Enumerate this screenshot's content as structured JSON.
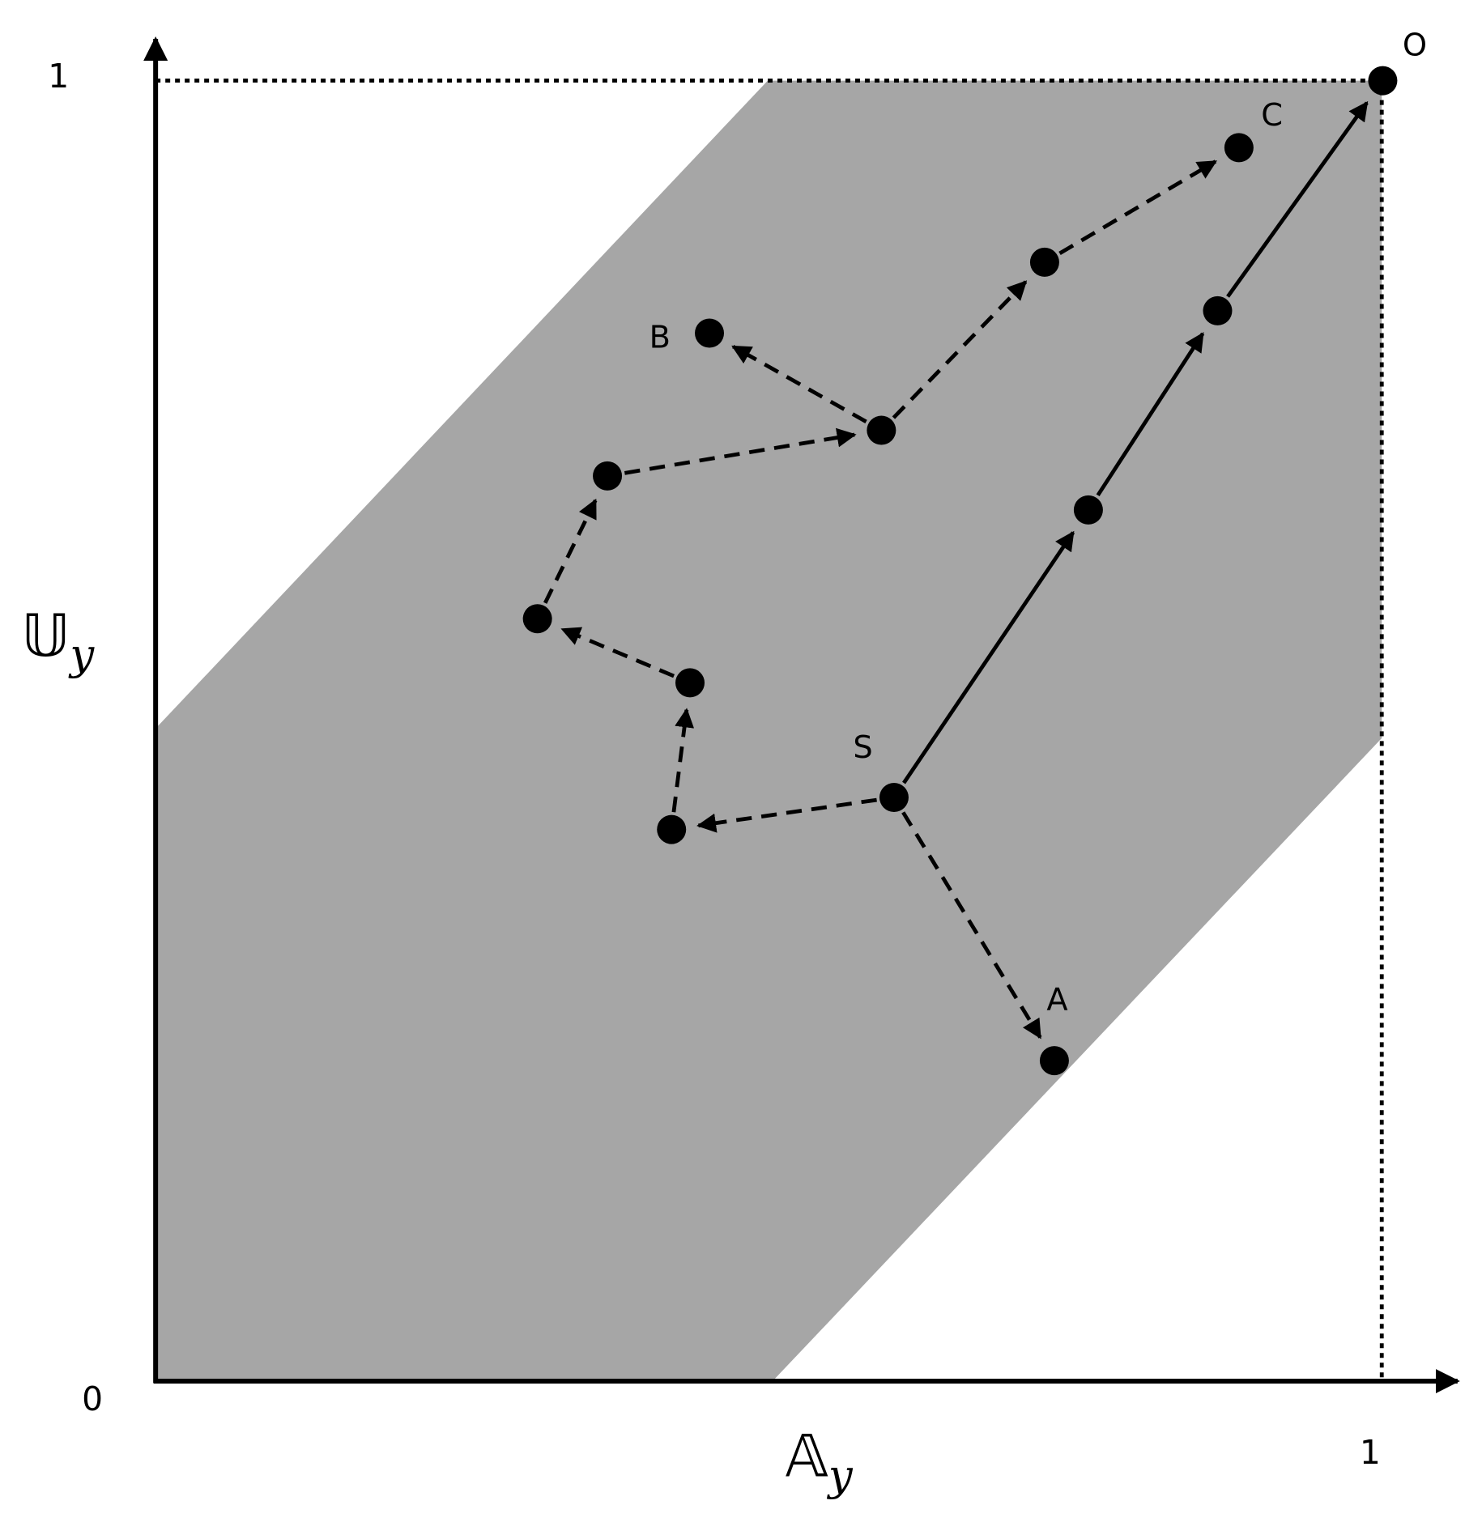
{
  "axes": {
    "x_label": {
      "symbol": "𝔸",
      "subscript": "y"
    },
    "y_label": {
      "symbol": "𝕌",
      "subscript": "y"
    },
    "origin_label": "0",
    "x_max_label": "1",
    "y_max_label": "1"
  },
  "points": {
    "O": "O",
    "C": "C",
    "B": "B",
    "S": "S",
    "A": "A"
  }
}
